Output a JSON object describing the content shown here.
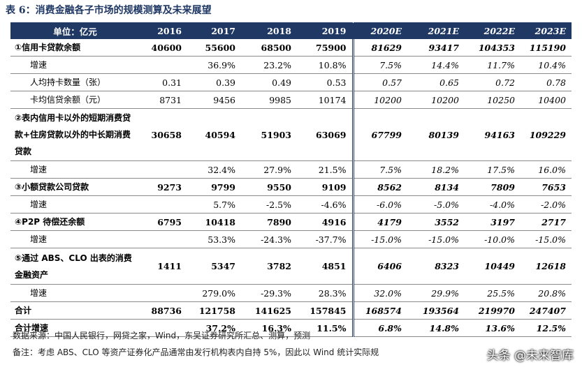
{
  "header": {
    "title": "表 6：消费金融各子市场的规模测算及未来展望"
  },
  "table": {
    "columns": [
      "单位：亿元",
      "2016",
      "2017",
      "2018",
      "2019",
      "2020E",
      "2021E",
      "2022E",
      "2023E"
    ],
    "rows": [
      [
        "①信用卡贷款余额",
        "40600",
        "55600",
        "68500",
        "75900",
        "81629",
        "93417",
        "104353",
        "115190"
      ],
      [
        "增速",
        null,
        "36.9%",
        "23.2%",
        "10.8%",
        "7.5%",
        "14.4%",
        "11.7%",
        "10.4%"
      ],
      [
        "人均持卡数量（张）",
        "0.31",
        "0.39",
        "0.49",
        "0.53",
        "0.57",
        "0.65",
        "0.72",
        "0.78"
      ],
      [
        "卡均信贷余额（元）",
        "8731",
        "9456",
        "9985",
        "10174",
        "10200",
        "10200",
        "10250",
        "10400"
      ],
      [
        "②表内信用卡以外的短期消费贷款+住房贷款以外的中长期消费贷款",
        "30658",
        "40594",
        "51903",
        "63069",
        "67799",
        "80139",
        "94163",
        "109229"
      ],
      [
        "增速",
        null,
        "32.4%",
        "27.9%",
        "21.5%",
        "7.5%",
        "18.2%",
        "17.5%",
        "16.0%"
      ],
      [
        "③小额贷款公司贷款",
        "9273",
        "9799",
        "9550",
        "9109",
        "8562",
        "8134",
        "7809",
        "7653"
      ],
      [
        "增速",
        null,
        "5.7%",
        "-2.5%",
        "-4.6%",
        "-6.0%",
        "-5.0%",
        "-4.0%",
        "-2.0%"
      ],
      [
        "④P2P 待偿还余额",
        "6795",
        "10418",
        "7890",
        "4916",
        "4179",
        "3552",
        "3197",
        "2717"
      ],
      [
        "增速",
        null,
        "53.3%",
        "-24.3%",
        "-37.7%",
        "-15.0%",
        "-15.0%",
        "-10.0%",
        "-15.0%"
      ],
      [
        "⑤通过 ABS、CLO 出表的消费金融资产",
        "1411",
        "5347",
        "3782",
        "4851",
        "6406",
        "8323",
        "10449",
        "12618"
      ],
      [
        "增速",
        null,
        "279.0%",
        "-29.3%",
        "28.3%",
        "32.0%",
        "29.9%",
        "25.5%",
        "20.8%"
      ],
      [
        "合计",
        "88736",
        "121758",
        "141625",
        "157845",
        "168574",
        "193564",
        "219970",
        "247407"
      ],
      [
        "合计增速",
        null,
        "37.2%",
        "16.3%",
        "11.5%",
        "6.8%",
        "14.8%",
        "13.6%",
        "12.5%"
      ]
    ]
  },
  "footer": {
    "source": "数据来源：中国人民银行，网贷之家，Wind，东吴证券研究所汇总、测算，预测",
    "note": "备注：考虑 ABS、CLO 等资产证券化产品通常由发行机构表内自持 5%，因此以 Wind 统计实际规"
  },
  "watermark": "头条 @未来智库"
}
